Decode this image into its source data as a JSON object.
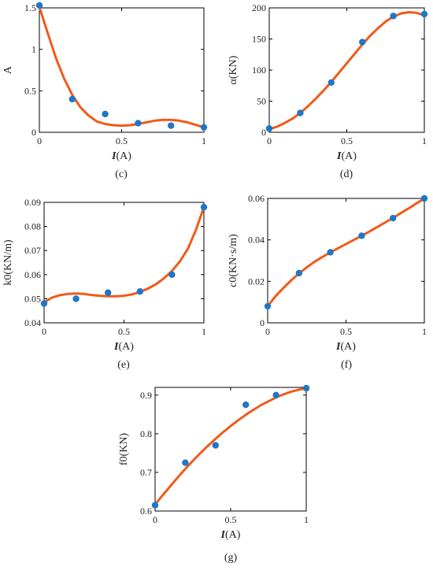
{
  "colors": {
    "points": "#1f77c5",
    "fit_line": "#f05a1a",
    "axes": "#000000"
  },
  "chart_data": [
    {
      "id": "c",
      "type": "scatter",
      "caption": "(c)",
      "xlabel": {
        "symbol": "I",
        "unit": "(A)"
      },
      "ylabel": "A",
      "xlim": [
        0,
        1
      ],
      "ylim": [
        0,
        1.5
      ],
      "xticks": [
        0,
        0.5,
        1
      ],
      "xtick_labels": [
        "0",
        "0.5",
        "1"
      ],
      "yticks": [
        0,
        0.5,
        1,
        1.5
      ],
      "ytick_labels": [
        "0",
        "0.5",
        "1",
        "1.5"
      ],
      "grid": false,
      "points": {
        "x": [
          0,
          0.2,
          0.4,
          0.6,
          0.8,
          1.0
        ],
        "y": [
          1.53,
          0.4,
          0.22,
          0.11,
          0.08,
          0.06
        ]
      },
      "fit": {
        "x": [
          0,
          0.05,
          0.1,
          0.15,
          0.2,
          0.25,
          0.3,
          0.35,
          0.4,
          0.45,
          0.5,
          0.55,
          0.6,
          0.65,
          0.7,
          0.75,
          0.8,
          0.85,
          0.9,
          0.95,
          1.0
        ],
        "y": [
          1.51,
          1.2,
          0.9,
          0.65,
          0.45,
          0.3,
          0.2,
          0.13,
          0.1,
          0.085,
          0.08,
          0.085,
          0.1,
          0.12,
          0.14,
          0.15,
          0.15,
          0.14,
          0.12,
          0.09,
          0.06
        ]
      }
    },
    {
      "id": "d",
      "type": "scatter",
      "caption": "(d)",
      "xlabel": {
        "symbol": "I",
        "unit": "(A)"
      },
      "ylabel": "α(KN)",
      "xlim": [
        0,
        1
      ],
      "ylim": [
        0,
        200
      ],
      "xticks": [
        0,
        0.5,
        1
      ],
      "xtick_labels": [
        "0",
        "0.5",
        "1"
      ],
      "yticks": [
        0,
        50,
        100,
        150,
        200
      ],
      "ytick_labels": [
        "0",
        "50",
        "100",
        "150",
        "200"
      ],
      "grid": false,
      "points": {
        "x": [
          0,
          0.2,
          0.4,
          0.6,
          0.8,
          1.0
        ],
        "y": [
          6,
          31,
          80,
          145,
          187,
          190
        ]
      },
      "fit": {
        "x": [
          0,
          0.05,
          0.1,
          0.15,
          0.2,
          0.25,
          0.3,
          0.35,
          0.4,
          0.45,
          0.5,
          0.55,
          0.6,
          0.65,
          0.7,
          0.75,
          0.8,
          0.85,
          0.9,
          0.95,
          1.0
        ],
        "y": [
          5,
          9,
          15,
          22,
          31,
          42,
          54,
          67,
          81,
          96,
          111,
          126,
          141,
          155,
          167,
          178,
          186,
          191,
          193,
          192,
          188
        ]
      }
    },
    {
      "id": "e",
      "type": "scatter",
      "caption": "(e)",
      "xlabel": {
        "symbol": "I",
        "unit": "(A)"
      },
      "ylabel": "k0(KN/m)",
      "xlim": [
        0,
        1
      ],
      "ylim": [
        0.04,
        0.09
      ],
      "xticks": [
        0,
        0.5,
        1
      ],
      "xtick_labels": [
        "0",
        "0.5",
        "1"
      ],
      "yticks": [
        0.04,
        0.05,
        0.06,
        0.07,
        0.08,
        0.09
      ],
      "ytick_labels": [
        "0.04",
        "0.05",
        "0.06",
        "0.07",
        "0.08",
        "0.09"
      ],
      "grid": false,
      "points": {
        "x": [
          0,
          0.2,
          0.4,
          0.6,
          0.8,
          1.0
        ],
        "y": [
          0.048,
          0.05,
          0.0525,
          0.053,
          0.06,
          0.088
        ]
      },
      "fit": {
        "x": [
          0,
          0.05,
          0.1,
          0.15,
          0.2,
          0.25,
          0.3,
          0.35,
          0.4,
          0.45,
          0.5,
          0.55,
          0.6,
          0.65,
          0.7,
          0.75,
          0.8,
          0.85,
          0.9,
          0.95,
          1.0
        ],
        "y": [
          0.0485,
          0.0505,
          0.0515,
          0.052,
          0.0522,
          0.052,
          0.0515,
          0.0512,
          0.051,
          0.051,
          0.0512,
          0.0518,
          0.0528,
          0.0542,
          0.056,
          0.0585,
          0.0615,
          0.0655,
          0.0708,
          0.0785,
          0.088
        ]
      }
    },
    {
      "id": "f",
      "type": "scatter",
      "caption": "(f)",
      "xlabel": {
        "symbol": "I",
        "unit": "(A)"
      },
      "ylabel": "c0(KN·s/m)",
      "xlim": [
        0,
        1
      ],
      "ylim": [
        0,
        0.06
      ],
      "xticks": [
        0,
        0.5,
        1
      ],
      "xtick_labels": [
        "0",
        "0.5",
        "1"
      ],
      "yticks": [
        0,
        0.02,
        0.04,
        0.06
      ],
      "ytick_labels": [
        "0",
        "0.02",
        "0.04",
        "0.06"
      ],
      "grid": false,
      "points": {
        "x": [
          0,
          0.2,
          0.4,
          0.6,
          0.8,
          1.0
        ],
        "y": [
          0.008,
          0.024,
          0.034,
          0.042,
          0.0505,
          0.06
        ]
      },
      "fit": {
        "x": [
          0,
          0.05,
          0.1,
          0.15,
          0.2,
          0.25,
          0.3,
          0.35,
          0.4,
          0.45,
          0.5,
          0.55,
          0.6,
          0.65,
          0.7,
          0.75,
          0.8,
          0.85,
          0.9,
          0.95,
          1.0
        ],
        "y": [
          0.008,
          0.0128,
          0.0168,
          0.0205,
          0.0238,
          0.0268,
          0.0295,
          0.0318,
          0.034,
          0.036,
          0.038,
          0.04,
          0.042,
          0.0441,
          0.0462,
          0.0484,
          0.0506,
          0.0529,
          0.0552,
          0.0576,
          0.06
        ]
      }
    },
    {
      "id": "g",
      "type": "scatter",
      "caption": "(g)",
      "xlabel": {
        "symbol": "I",
        "unit": "(A)"
      },
      "ylabel": "f0(KN)",
      "xlim": [
        0,
        1
      ],
      "ylim": [
        0.6,
        0.92
      ],
      "xticks": [
        0,
        0.5,
        1
      ],
      "xtick_labels": [
        "0",
        "0.5",
        "1"
      ],
      "yticks": [
        0.6,
        0.7,
        0.8,
        0.9
      ],
      "ytick_labels": [
        "0.6",
        "0.7",
        "0.8",
        "0.9"
      ],
      "grid": false,
      "points": {
        "x": [
          0,
          0.2,
          0.4,
          0.6,
          0.8,
          1.0
        ],
        "y": [
          0.615,
          0.725,
          0.77,
          0.875,
          0.9,
          0.918
        ]
      },
      "fit": {
        "x": [
          0,
          0.05,
          0.1,
          0.15,
          0.2,
          0.25,
          0.3,
          0.35,
          0.4,
          0.45,
          0.5,
          0.55,
          0.6,
          0.65,
          0.7,
          0.75,
          0.8,
          0.85,
          0.9,
          0.95,
          1.0
        ],
        "y": [
          0.617,
          0.641,
          0.664,
          0.687,
          0.709,
          0.73,
          0.75,
          0.769,
          0.787,
          0.804,
          0.82,
          0.835,
          0.849,
          0.862,
          0.874,
          0.884,
          0.894,
          0.902,
          0.909,
          0.914,
          0.918
        ]
      }
    }
  ]
}
